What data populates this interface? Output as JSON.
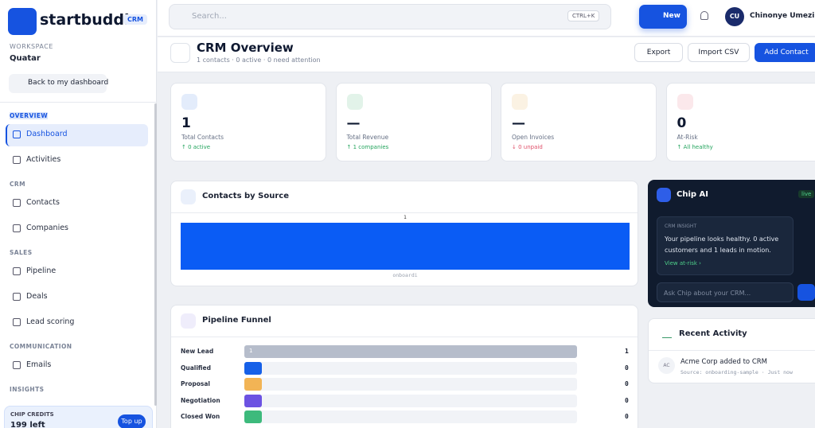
{
  "brand": {
    "name": "startbuddi",
    "badge": "CRM"
  },
  "sidebar": {
    "workspace_label": "WORKSPACE",
    "workspace": "Quatar",
    "back": "Back to my dashboard",
    "sections": [
      {
        "title": "OVERVIEW",
        "items": [
          "Dashboard",
          "Activities"
        ]
      },
      {
        "title": "CRM",
        "items": [
          "Contacts",
          "Companies"
        ]
      },
      {
        "title": "SALES",
        "items": [
          "Pipeline",
          "Deals",
          "Lead scoring"
        ]
      },
      {
        "title": "COMMUNICATION",
        "items": [
          "Emails"
        ]
      },
      {
        "title": "INSIGHTS",
        "items": []
      }
    ],
    "credits": {
      "label": "CHIP CREDITS",
      "value": "199 left",
      "button": "Top up"
    }
  },
  "topbar": {
    "search": "Search...",
    "shortcut": "CTRL+K",
    "new": "New",
    "avatar": "CU",
    "user": "Chinonye Umezinn"
  },
  "header": {
    "title": "CRM Overview",
    "subtitle": "1 contacts · 0 active · 0 need attention",
    "buttons": [
      "Export",
      "Import CSV",
      "Add Contact"
    ]
  },
  "stats": [
    {
      "value": "1",
      "label": "Total Contacts",
      "note": "↑ 0 active",
      "color": "#2f6fe4"
    },
    {
      "value": "—",
      "label": "Total Revenue",
      "note": "↑ 1 companies",
      "color": "#23a45d"
    },
    {
      "value": "—",
      "label": "Open Invoices",
      "note": "↓ 0 unpaid",
      "color": "#e0a030"
    },
    {
      "value": "0",
      "label": "At-Risk",
      "note": "↑ All healthy",
      "color": "#e0506a"
    }
  ],
  "contacts_by_source": {
    "title": "Contacts by Source",
    "chart_data": {
      "type": "bar",
      "categories": [
        "onboardi"
      ],
      "values": [
        1
      ],
      "ylim": [
        0,
        1
      ],
      "color": "#0a5cf5"
    }
  },
  "funnel": {
    "title": "Pipeline Funnel",
    "stages": [
      {
        "name": "New Lead",
        "value": 1,
        "color": "#b6bdcb"
      },
      {
        "name": "Qualified",
        "value": 0,
        "color": "#1660e8"
      },
      {
        "name": "Proposal",
        "value": 0,
        "color": "#f2b455"
      },
      {
        "name": "Negotiation",
        "value": 0,
        "color": "#6c52e2"
      },
      {
        "name": "Closed Won",
        "value": 0,
        "color": "#3dba7c"
      }
    ]
  },
  "chip": {
    "title": "Chip AI",
    "badge": "live",
    "insight_label": "CRM INSIGHT",
    "insight": "Your pipeline looks healthy. 0 active customers and 1 leads in motion.",
    "link": "View at-risk ›",
    "input": "Ask Chip about your CRM..."
  },
  "recent": {
    "title": "Recent Activity",
    "items": [
      {
        "avatar": "AC",
        "text": "Acme Corp added to CRM",
        "meta": "Source: onboarding-sample · Just now"
      }
    ]
  }
}
